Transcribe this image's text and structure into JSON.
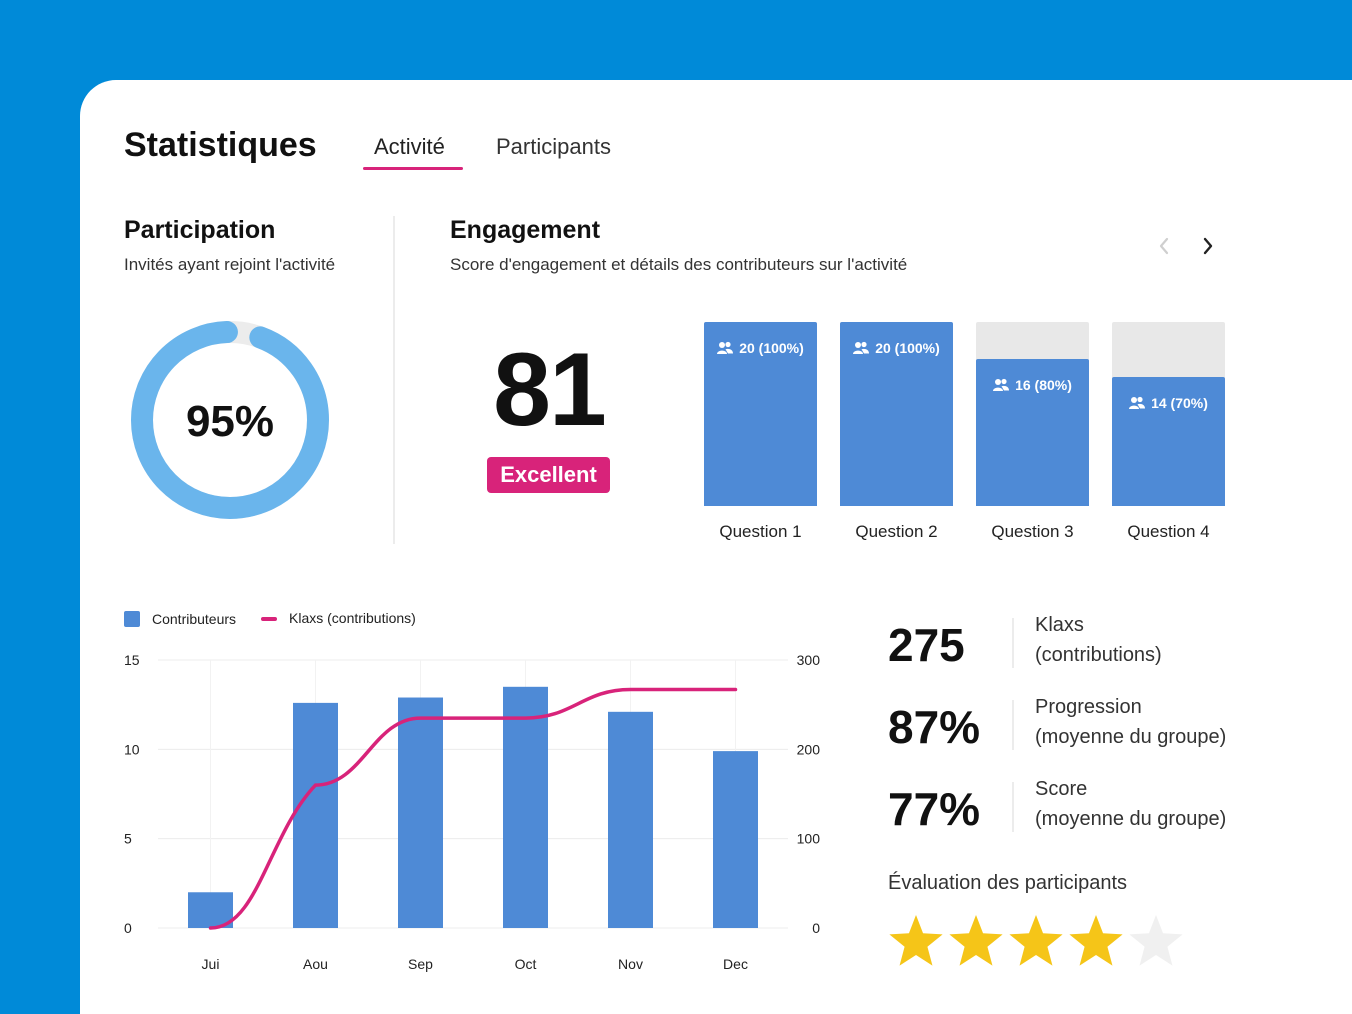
{
  "header": {
    "title": "Statistiques",
    "tabs": [
      {
        "label": "Activité",
        "active": true
      },
      {
        "label": "Participants",
        "active": false
      }
    ]
  },
  "participation": {
    "title": "Participation",
    "subtitle": "Invités ayant rejoint l'activité",
    "percent_label": "95%",
    "value": 0.95,
    "ring_color": "#6ab5ec"
  },
  "engagement": {
    "title": "Engagement",
    "subtitle": "Score d'engagement et détails des contributeurs sur l'activité",
    "score": "81",
    "rating": "Excellent",
    "nav": {
      "prev_icon": "chevron-left-icon",
      "next_icon": "chevron-right-icon"
    },
    "questions": [
      {
        "label": "Question 1",
        "value_label": "20 (100%)",
        "percent": 100
      },
      {
        "label": "Question 2",
        "value_label": "20 (100%)",
        "percent": 100
      },
      {
        "label": "Question 3",
        "value_label": "16 (80%)",
        "percent": 80
      },
      {
        "label": "Question 4",
        "value_label": "14 (70%)",
        "percent": 70
      }
    ]
  },
  "chart_data": {
    "type": "bar",
    "categories": [
      "Jui",
      "Aou",
      "Sep",
      "Oct",
      "Nov",
      "Dec"
    ],
    "series": [
      {
        "name": "Contributeurs",
        "type": "bar",
        "axis": "left",
        "values": [
          2,
          12.6,
          12.9,
          13.5,
          12.1,
          9.9
        ],
        "color": "#4e8ad6"
      },
      {
        "name": "Klaxs (contributions)",
        "type": "line",
        "axis": "right",
        "values": [
          0,
          160,
          235,
          235,
          267,
          267
        ],
        "color": "#d8237a"
      }
    ],
    "y_left": {
      "min": 0,
      "max": 15,
      "ticks": [
        "0",
        "5",
        "10",
        "15"
      ]
    },
    "y_right": {
      "min": 0,
      "max": 300,
      "ticks": [
        "0",
        "100",
        "200",
        "300"
      ]
    },
    "grid": true,
    "legend_position": "top-left",
    "legend": [
      "Contributeurs",
      "Klaxs (contributions)"
    ]
  },
  "summary": {
    "stats": [
      {
        "value": "275",
        "label_line1": "Klaxs",
        "label_line2": "(contributions)"
      },
      {
        "value": "87%",
        "label_line1": "Progression",
        "label_line2": "(moyenne du groupe)"
      },
      {
        "value": "77%",
        "label_line1": "Score",
        "label_line2": "(moyenne du groupe)"
      }
    ],
    "rating_title": "Évaluation des participants",
    "rating_value": 4,
    "rating_max": 5,
    "star_color": "#f5c518",
    "star_empty_color": "#f0f0f0"
  }
}
